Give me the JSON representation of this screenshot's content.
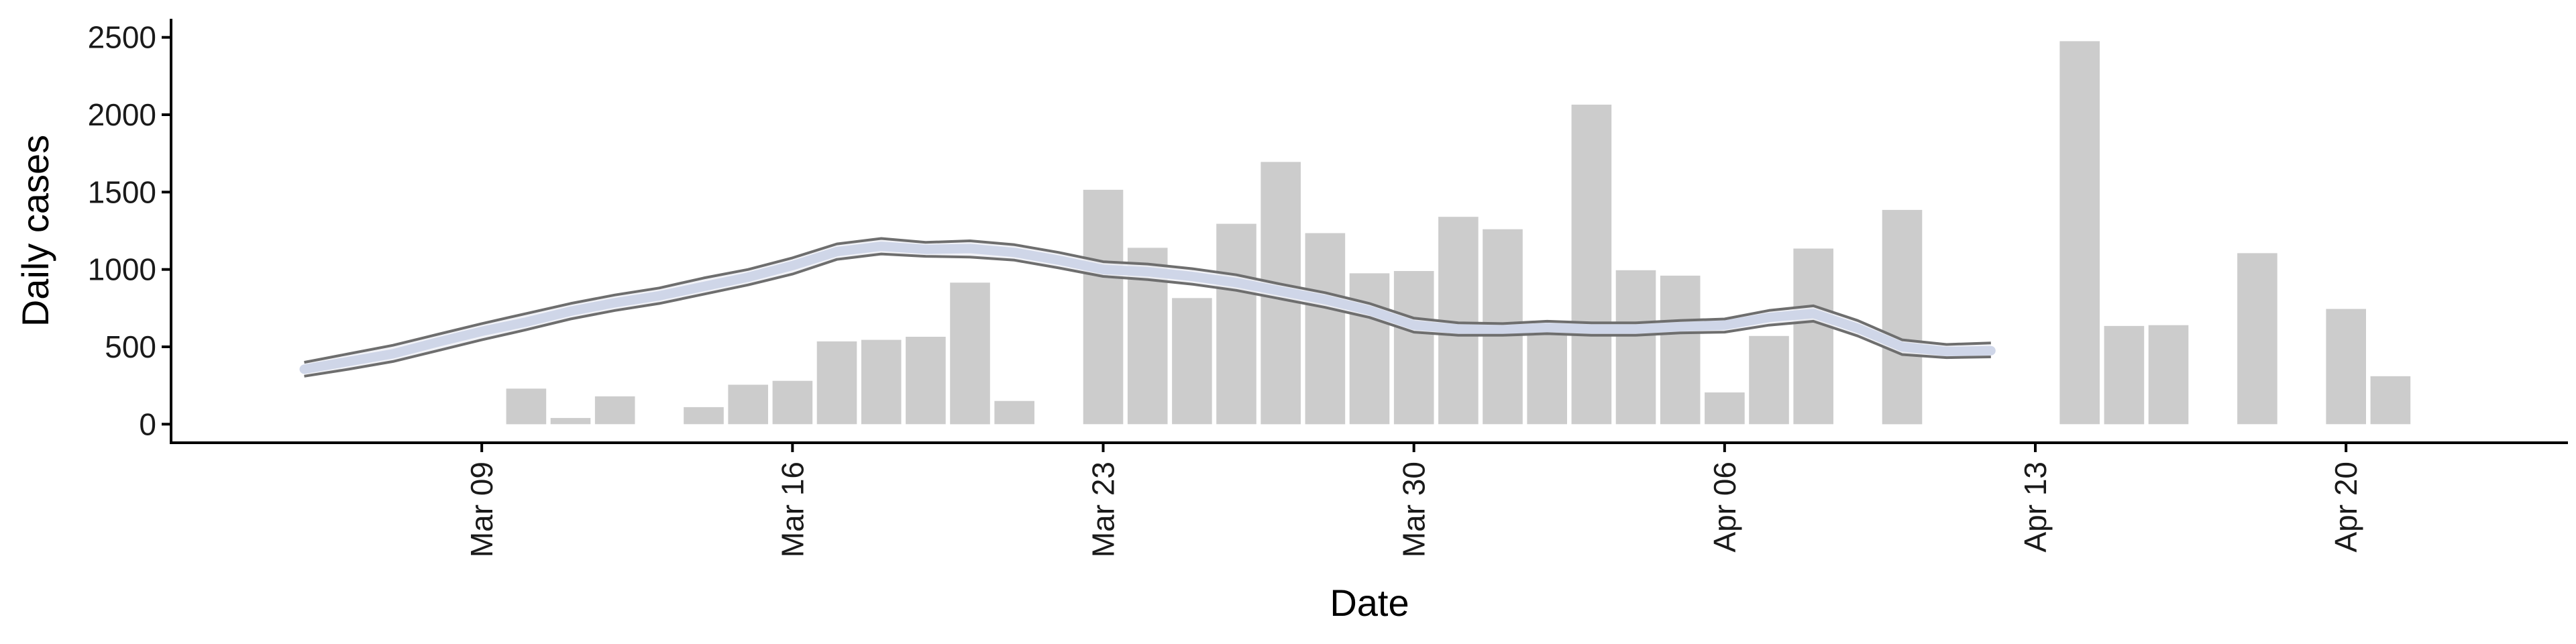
{
  "chart_data": {
    "type": "bar",
    "xlabel": "Date",
    "ylabel": "Daily cases",
    "x_axis": {
      "type": "date",
      "range": [
        "2020-03-02",
        "2020-04-25"
      ],
      "ticks": [
        {
          "date": "2020-03-09",
          "label": "Mar 09"
        },
        {
          "date": "2020-03-16",
          "label": "Mar 16"
        },
        {
          "date": "2020-03-23",
          "label": "Mar 23"
        },
        {
          "date": "2020-03-30",
          "label": "Mar 30"
        },
        {
          "date": "2020-04-06",
          "label": "Apr 06"
        },
        {
          "date": "2020-04-13",
          "label": "Apr 13"
        },
        {
          "date": "2020-04-20",
          "label": "Apr 20"
        }
      ]
    },
    "y_axis": {
      "range": [
        -120,
        2620
      ],
      "ticks": [
        0,
        500,
        1000,
        1500,
        2000,
        2500
      ]
    },
    "grid": false,
    "legend": "none",
    "bars": [
      {
        "date": "2020-03-10",
        "value": 230
      },
      {
        "date": "2020-03-11",
        "value": 40
      },
      {
        "date": "2020-03-12",
        "value": 180
      },
      {
        "date": "2020-03-14",
        "value": 110
      },
      {
        "date": "2020-03-15",
        "value": 255
      },
      {
        "date": "2020-03-16",
        "value": 280
      },
      {
        "date": "2020-03-17",
        "value": 535
      },
      {
        "date": "2020-03-18",
        "value": 545
      },
      {
        "date": "2020-03-19",
        "value": 565
      },
      {
        "date": "2020-03-20",
        "value": 915
      },
      {
        "date": "2020-03-21",
        "value": 150
      },
      {
        "date": "2020-03-23",
        "value": 1515
      },
      {
        "date": "2020-03-24",
        "value": 1140
      },
      {
        "date": "2020-03-25",
        "value": 815
      },
      {
        "date": "2020-03-26",
        "value": 1295
      },
      {
        "date": "2020-03-27",
        "value": 1695
      },
      {
        "date": "2020-03-28",
        "value": 1235
      },
      {
        "date": "2020-03-29",
        "value": 975
      },
      {
        "date": "2020-03-30",
        "value": 990
      },
      {
        "date": "2020-03-31",
        "value": 1340
      },
      {
        "date": "2020-04-01",
        "value": 1260
      },
      {
        "date": "2020-04-02",
        "value": 600
      },
      {
        "date": "2020-04-03",
        "value": 2065
      },
      {
        "date": "2020-04-04",
        "value": 995
      },
      {
        "date": "2020-04-05",
        "value": 960
      },
      {
        "date": "2020-04-06",
        "value": 205
      },
      {
        "date": "2020-04-07",
        "value": 570
      },
      {
        "date": "2020-04-08",
        "value": 1135
      },
      {
        "date": "2020-04-10",
        "value": 1385
      },
      {
        "date": "2020-04-14",
        "value": 2475
      },
      {
        "date": "2020-04-15",
        "value": 635
      },
      {
        "date": "2020-04-16",
        "value": 640
      },
      {
        "date": "2020-04-18",
        "value": 1105
      },
      {
        "date": "2020-04-20",
        "value": 745
      },
      {
        "date": "2020-04-21",
        "value": 310
      }
    ],
    "band": {
      "name": "",
      "points": [
        {
          "date": "2020-03-05",
          "lower": 310,
          "mid": 355,
          "upper": 400
        },
        {
          "date": "2020-03-06",
          "lower": 355,
          "mid": 405,
          "upper": 455
        },
        {
          "date": "2020-03-07",
          "lower": 405,
          "mid": 455,
          "upper": 510
        },
        {
          "date": "2020-03-08",
          "lower": 475,
          "mid": 530,
          "upper": 580
        },
        {
          "date": "2020-03-09",
          "lower": 545,
          "mid": 600,
          "upper": 650
        },
        {
          "date": "2020-03-10",
          "lower": 610,
          "mid": 660,
          "upper": 715
        },
        {
          "date": "2020-03-11",
          "lower": 680,
          "mid": 730,
          "upper": 780
        },
        {
          "date": "2020-03-12",
          "lower": 735,
          "mid": 785,
          "upper": 835
        },
        {
          "date": "2020-03-13",
          "lower": 780,
          "mid": 830,
          "upper": 880
        },
        {
          "date": "2020-03-14",
          "lower": 840,
          "mid": 890,
          "upper": 945
        },
        {
          "date": "2020-03-15",
          "lower": 900,
          "mid": 950,
          "upper": 1000
        },
        {
          "date": "2020-03-16",
          "lower": 970,
          "mid": 1025,
          "upper": 1075
        },
        {
          "date": "2020-03-17",
          "lower": 1065,
          "mid": 1115,
          "upper": 1165
        },
        {
          "date": "2020-03-18",
          "lower": 1100,
          "mid": 1150,
          "upper": 1200
        },
        {
          "date": "2020-03-19",
          "lower": 1085,
          "mid": 1130,
          "upper": 1175
        },
        {
          "date": "2020-03-20",
          "lower": 1080,
          "mid": 1135,
          "upper": 1185
        },
        {
          "date": "2020-03-21",
          "lower": 1060,
          "mid": 1110,
          "upper": 1160
        },
        {
          "date": "2020-03-22",
          "lower": 1010,
          "mid": 1060,
          "upper": 1110
        },
        {
          "date": "2020-03-23",
          "lower": 955,
          "mid": 1000,
          "upper": 1050
        },
        {
          "date": "2020-03-24",
          "lower": 935,
          "mid": 985,
          "upper": 1035
        },
        {
          "date": "2020-03-25",
          "lower": 905,
          "mid": 955,
          "upper": 1005
        },
        {
          "date": "2020-03-26",
          "lower": 865,
          "mid": 915,
          "upper": 965
        },
        {
          "date": "2020-03-27",
          "lower": 810,
          "mid": 860,
          "upper": 905
        },
        {
          "date": "2020-03-28",
          "lower": 755,
          "mid": 805,
          "upper": 850
        },
        {
          "date": "2020-03-29",
          "lower": 690,
          "mid": 735,
          "upper": 780
        },
        {
          "date": "2020-03-30",
          "lower": 595,
          "mid": 640,
          "upper": 685
        },
        {
          "date": "2020-03-31",
          "lower": 575,
          "mid": 615,
          "upper": 655
        },
        {
          "date": "2020-04-01",
          "lower": 575,
          "mid": 610,
          "upper": 650
        },
        {
          "date": "2020-04-02",
          "lower": 585,
          "mid": 625,
          "upper": 665
        },
        {
          "date": "2020-04-03",
          "lower": 575,
          "mid": 615,
          "upper": 655
        },
        {
          "date": "2020-04-04",
          "lower": 575,
          "mid": 615,
          "upper": 655
        },
        {
          "date": "2020-04-05",
          "lower": 590,
          "mid": 630,
          "upper": 670
        },
        {
          "date": "2020-04-06",
          "lower": 595,
          "mid": 640,
          "upper": 680
        },
        {
          "date": "2020-04-07",
          "lower": 640,
          "mid": 690,
          "upper": 735
        },
        {
          "date": "2020-04-08",
          "lower": 665,
          "mid": 715,
          "upper": 765
        },
        {
          "date": "2020-04-09",
          "lower": 570,
          "mid": 620,
          "upper": 670
        },
        {
          "date": "2020-04-10",
          "lower": 450,
          "mid": 500,
          "upper": 545
        },
        {
          "date": "2020-04-11",
          "lower": 430,
          "mid": 470,
          "upper": 515
        },
        {
          "date": "2020-04-12",
          "lower": 435,
          "mid": 475,
          "upper": 525
        }
      ]
    },
    "colors": {
      "bars": "#cccccc",
      "band_edge": "#6e6e6e",
      "band_center": "#cfd6e8",
      "axis": "#000000",
      "text": "#1a1a1a"
    }
  }
}
